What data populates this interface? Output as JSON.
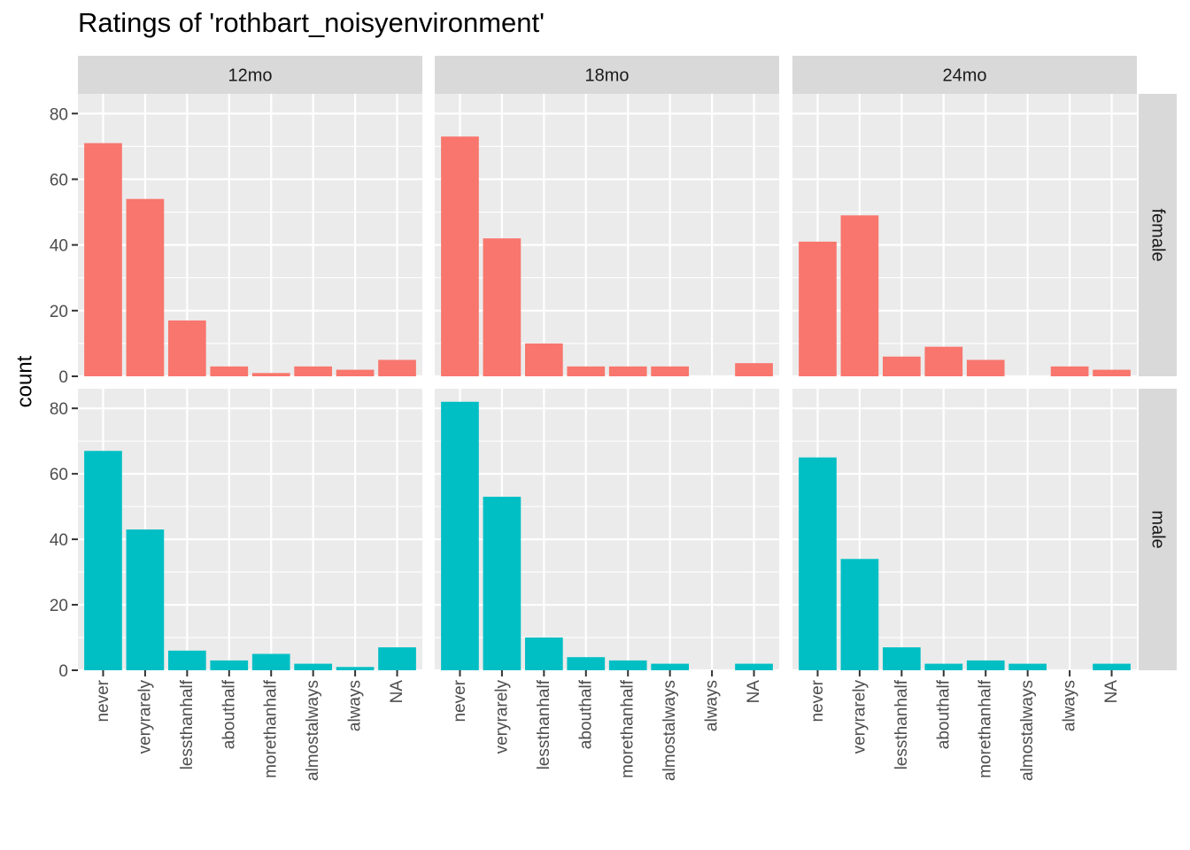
{
  "chart_data": {
    "type": "bar",
    "title": "Ratings of 'rothbart_noisyenvironment'",
    "xlabel": "",
    "ylabel": "count",
    "ylim": [
      0,
      86
    ],
    "yticks": [
      0,
      20,
      40,
      60,
      80
    ],
    "grid": true,
    "legend": "none",
    "categories": [
      "never",
      "veryrarely",
      "lessthanhalf",
      "abouthalf",
      "morethanhalf",
      "almostalways",
      "always",
      "NA"
    ],
    "facet_columns": [
      "12mo",
      "18mo",
      "24mo"
    ],
    "facet_rows": [
      "female",
      "male"
    ],
    "series": [
      {
        "name": "female",
        "color": "#F8766D",
        "values_by_facet": {
          "12mo": [
            71,
            54,
            17,
            3,
            1,
            3,
            2,
            5
          ],
          "18mo": [
            73,
            42,
            10,
            3,
            3,
            3,
            0,
            4
          ],
          "24mo": [
            41,
            49,
            6,
            9,
            5,
            0,
            3,
            2
          ]
        }
      },
      {
        "name": "male",
        "color": "#00BFC4",
        "values_by_facet": {
          "12mo": [
            67,
            43,
            6,
            3,
            5,
            2,
            1,
            7
          ],
          "18mo": [
            82,
            53,
            10,
            4,
            3,
            2,
            0,
            2
          ],
          "24mo": [
            65,
            34,
            7,
            2,
            3,
            2,
            0,
            2
          ]
        }
      }
    ]
  }
}
